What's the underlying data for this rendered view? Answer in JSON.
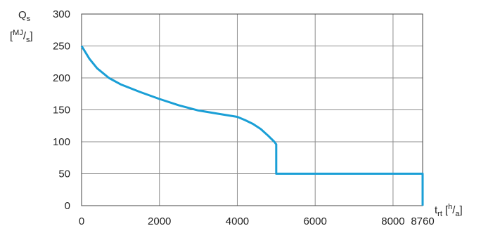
{
  "chart_data": {
    "type": "line",
    "xlabel": {
      "main": "t",
      "sub": "rt",
      "unit_open": "[",
      "unit_sup": "h",
      "unit_slash": "/",
      "unit_sub": "a",
      "unit_close": "]"
    },
    "ylabel": {
      "main": "Q",
      "sub": "s",
      "unit_open": "[",
      "unit_sup": "MJ",
      "unit_slash": "/",
      "unit_sub": "s",
      "unit_close": "]"
    },
    "xlim": [
      0,
      8760
    ],
    "ylim": [
      0,
      300
    ],
    "xticks": [
      0,
      2000,
      4000,
      6000,
      8000,
      8760
    ],
    "xtick_labels": [
      "0",
      "2000",
      "4000",
      "6000",
      "8000",
      "8760"
    ],
    "yticks": [
      0,
      50,
      100,
      150,
      200,
      250,
      300
    ],
    "ytick_labels": [
      "0",
      "50",
      "100",
      "150",
      "200",
      "250",
      "300"
    ],
    "grid": true,
    "series_color": "#1a9fd6",
    "series": [
      {
        "x": [
          0,
          200,
          400,
          700,
          1000,
          1500,
          2000,
          2500,
          3000,
          3500,
          4000,
          4200,
          4400,
          4600,
          4800,
          4950,
          5000,
          5000,
          5500,
          6000,
          7000,
          8000,
          8760,
          8760
        ],
        "y": [
          250,
          230,
          215,
          200,
          190,
          178,
          167,
          157,
          149,
          144,
          139,
          134,
          128,
          120,
          109,
          100,
          96,
          50,
          50,
          50,
          50,
          50,
          50,
          0
        ]
      }
    ]
  }
}
